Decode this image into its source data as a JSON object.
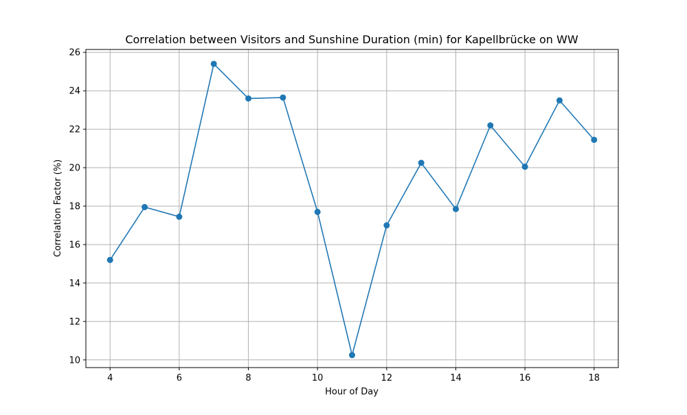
{
  "chart_data": {
    "type": "line",
    "title": "Correlation between Visitors and Sunshine Duration (min) for Kapellbrücke on WW",
    "xlabel": "Hour of Day",
    "ylabel": "Correlation Factor (%)",
    "xlim": [
      3.3,
      18.7
    ],
    "ylim": [
      9.6,
      26.15
    ],
    "x_ticks": [
      4,
      6,
      8,
      10,
      12,
      14,
      16,
      18
    ],
    "y_ticks": [
      10,
      12,
      14,
      16,
      18,
      20,
      22,
      24,
      26
    ],
    "grid": true,
    "series": [
      {
        "color": "#1f77b4",
        "marker": "circle",
        "x": [
          4,
          5,
          6,
          7,
          8,
          9,
          10,
          11,
          12,
          13,
          14,
          15,
          16,
          17,
          18
        ],
        "y": [
          15.2,
          17.95,
          17.45,
          25.4,
          23.6,
          23.65,
          17.7,
          10.25,
          17.0,
          20.25,
          17.85,
          22.2,
          20.05,
          23.5,
          21.45
        ]
      }
    ]
  }
}
